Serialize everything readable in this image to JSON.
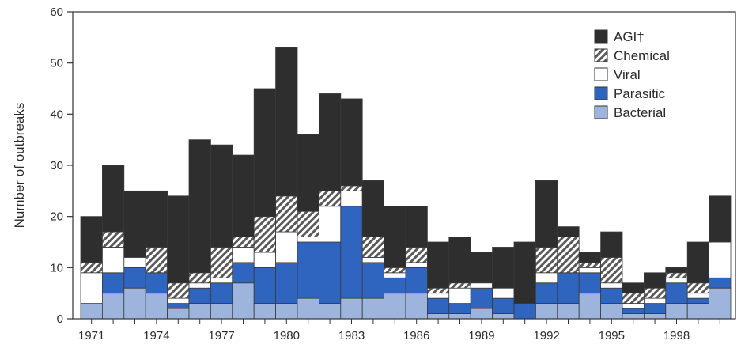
{
  "chart_data": {
    "type": "bar",
    "stacked": true,
    "ylabel": "Number of outbreaks",
    "xlabel": "",
    "ylim": [
      0,
      60
    ],
    "yticks": [
      0,
      10,
      20,
      30,
      40,
      50,
      60
    ],
    "x": [
      1971,
      1972,
      1973,
      1974,
      1975,
      1976,
      1977,
      1978,
      1979,
      1980,
      1981,
      1982,
      1983,
      1984,
      1985,
      1986,
      1987,
      1988,
      1989,
      1990,
      1991,
      1992,
      1993,
      1994,
      1995,
      1996,
      1997,
      1998,
      1999,
      2000
    ],
    "xtick_labels": [
      "1971",
      "1974",
      "1977",
      "1980",
      "1983",
      "1986",
      "1989",
      "1992",
      "1995",
      "1998"
    ],
    "legend_position": "top-right",
    "series": [
      {
        "name": "Bacterial",
        "color": "#9db4dc",
        "pattern": "solid",
        "values": [
          3,
          5,
          6,
          5,
          2,
          3,
          3,
          7,
          3,
          3,
          4,
          3,
          4,
          4,
          5,
          5,
          1,
          1,
          2,
          1,
          0,
          3,
          3,
          5,
          3,
          1,
          1,
          3,
          3,
          6
        ]
      },
      {
        "name": "Parasitic",
        "color": "#2f64bf",
        "pattern": "solid",
        "values": [
          0,
          4,
          4,
          4,
          1,
          3,
          4,
          4,
          7,
          8,
          11,
          12,
          18,
          7,
          3,
          5,
          3,
          2,
          4,
          3,
          3,
          4,
          6,
          4,
          3,
          1,
          2,
          4,
          1,
          2
        ]
      },
      {
        "name": "Viral",
        "color": "#ffffff",
        "pattern": "solid",
        "values": [
          6,
          5,
          2,
          0,
          1,
          1,
          1,
          3,
          3,
          6,
          1,
          7,
          3,
          1,
          1,
          1,
          1,
          3,
          1,
          2,
          0,
          2,
          0,
          1,
          1,
          1,
          1,
          1,
          1,
          7
        ]
      },
      {
        "name": "Chemical",
        "color": "#9a9a9a",
        "pattern": "hatch",
        "values": [
          2,
          3,
          0,
          5,
          3,
          2,
          6,
          2,
          7,
          7,
          5,
          3,
          1,
          4,
          1,
          3,
          1,
          1,
          0,
          0,
          0,
          5,
          7,
          1,
          5,
          2,
          2,
          1,
          2,
          0
        ]
      },
      {
        "name": "AGI†",
        "color": "#2e2e2e",
        "pattern": "solid",
        "values": [
          9,
          13,
          13,
          11,
          17,
          26,
          20,
          16,
          25,
          29,
          15,
          19,
          17,
          11,
          12,
          8,
          9,
          9,
          6,
          8,
          12,
          13,
          2,
          2,
          5,
          2,
          3,
          1,
          8,
          9
        ]
      }
    ]
  }
}
